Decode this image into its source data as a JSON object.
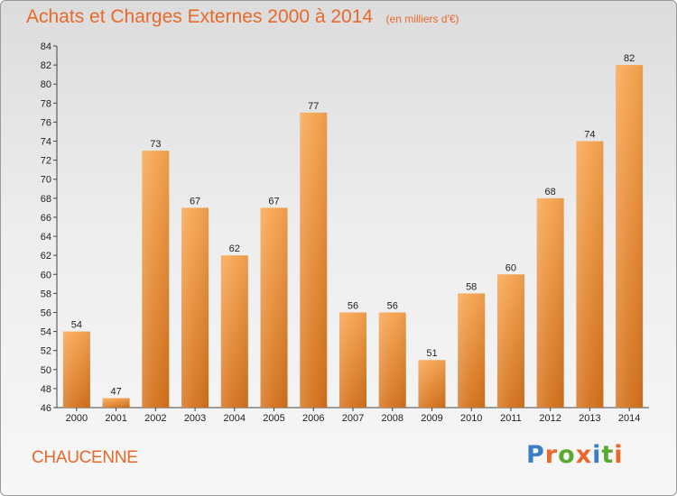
{
  "header": {
    "title": "Achats et Charges Externes 2000 à 2014",
    "subtitle": "(en milliers d'€)"
  },
  "footer": {
    "city": "CHAUCENNE",
    "logo": {
      "text": "Proxiti",
      "letter_colors": [
        "#3a7fc4",
        "#e8692a",
        "#5aaa32",
        "#e8692a",
        "#3a7fc4",
        "#5aaa32",
        "#e8692a"
      ]
    }
  },
  "chart_data": {
    "type": "bar",
    "categories": [
      "2000",
      "2001",
      "2002",
      "2003",
      "2004",
      "2005",
      "2006",
      "2007",
      "2008",
      "2009",
      "2010",
      "2011",
      "2012",
      "2013",
      "2014"
    ],
    "values": [
      54,
      47,
      73,
      67,
      62,
      67,
      77,
      56,
      56,
      51,
      58,
      60,
      68,
      74,
      82
    ],
    "ylim": [
      46,
      84
    ],
    "yticks": [
      46,
      48,
      50,
      52,
      54,
      56,
      58,
      60,
      62,
      64,
      66,
      68,
      70,
      72,
      74,
      76,
      78,
      80,
      82,
      84
    ],
    "grid": false,
    "bar_color_top": "#f7a550",
    "bar_color_bottom": "#d4721c"
  }
}
